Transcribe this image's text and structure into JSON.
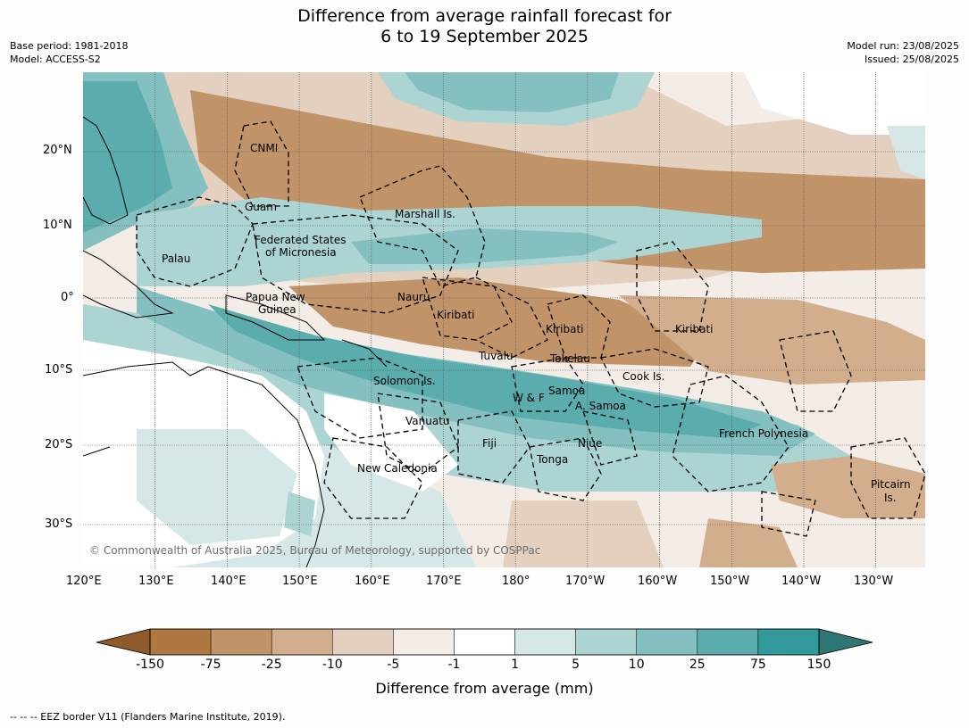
{
  "title_line1": "Difference from average rainfall forecast for",
  "title_line2": "6 to 19 September 2025",
  "meta_left": {
    "base_period": "Base period: 1981-2018",
    "model": "Model: ACCESS-S2"
  },
  "meta_right": {
    "model_run": "Model run: 23/08/2025",
    "issued": "Issued: 25/08/2025"
  },
  "lon_ticks": [
    "120°E",
    "130°E",
    "140°E",
    "150°E",
    "160°E",
    "170°E",
    "180°",
    "170°W",
    "160°W",
    "150°W",
    "140°W",
    "130°W"
  ],
  "lat_ticks": [
    "20°N",
    "10°N",
    "0°",
    "10°S",
    "20°S",
    "30°S"
  ],
  "region_labels": {
    "cnmi": "CNMI",
    "guam": "Guam",
    "marshall": "Marshall Is.",
    "fsm_1": "Federated States",
    "fsm_2": "of Micronesia",
    "palau": "Palau",
    "png_1": "Papua New",
    "png_2": "Guinea",
    "nauru": "Nauru",
    "kiribati_w": "Kiribati",
    "kiribati_c": "Kiribati",
    "kiribati_e": "Kiribati",
    "tuvalu": "Tuvalu",
    "tokelau": "Tokelau",
    "cook": "Cook Is.",
    "solomon": "Solomon Is.",
    "wf": "W & F",
    "samoa": "Samoa",
    "asamoa": "A. Samoa",
    "vanuatu": "Vanuatu",
    "fiji": "Fiji",
    "niue": "Niue",
    "tonga": "Tonga",
    "frenchpoly": "French Polynesia",
    "newcal": "New Caledonia",
    "pitcairn_1": "Pitcairn",
    "pitcairn_2": "Is."
  },
  "copyright": "© Commonwealth of Australia 2025, Bureau of Meteorology, supported by COSPPac",
  "colorbar": {
    "title": "Difference from average (mm)",
    "ticks": [
      "-150",
      "-75",
      "-25",
      "-10",
      "-5",
      "-1",
      "1",
      "5",
      "10",
      "25",
      "75",
      "150"
    ],
    "colors": [
      "#ae7840",
      "#c09368",
      "#d2ae8c",
      "#e3d0bf",
      "#f4ece6",
      "#ffffff",
      "#d5e8e7",
      "#acd4d3",
      "#85c0c0",
      "#5aacad",
      "#32999a"
    ],
    "extend_low": "#8f5a2c",
    "extend_high": "#2e7574"
  },
  "footer": "--  --  -- EEZ border V11 (Flanders Marine Institute, 2019)."
}
